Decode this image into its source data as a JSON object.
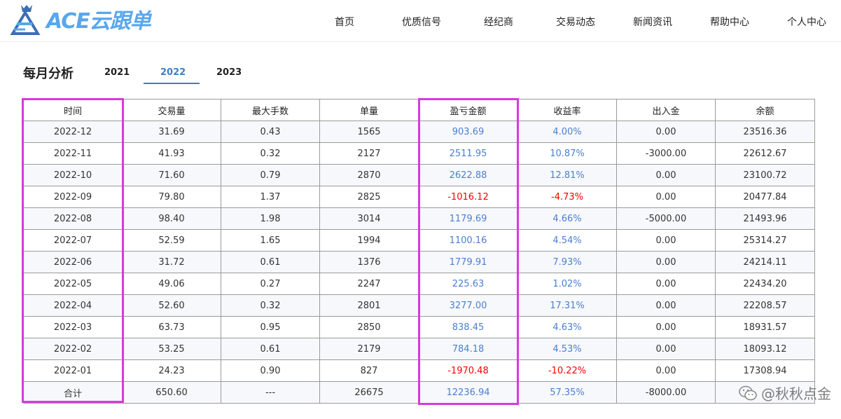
{
  "header": {
    "logo_text": "ACE云跟单",
    "nav": [
      "首页",
      "优质信号",
      "经纪商",
      "交易动态",
      "新闻资讯",
      "帮助中心",
      "个人中心"
    ]
  },
  "page": {
    "title": "每月分析",
    "years": [
      "2021",
      "2022",
      "2023"
    ],
    "active_year": "2022"
  },
  "table": {
    "headers": [
      "时间",
      "交易量",
      "最大手数",
      "单量",
      "盈亏金额",
      "收益率",
      "出入金",
      "余额"
    ],
    "rows": [
      {
        "time": "2022-12",
        "volume": "31.69",
        "max_lots": "0.43",
        "orders": "1565",
        "pnl": "903.69",
        "pnl_sign": "pos",
        "return": "4.00%",
        "deposit": "0.00",
        "balance": "23516.36"
      },
      {
        "time": "2022-11",
        "volume": "41.93",
        "max_lots": "0.32",
        "orders": "2127",
        "pnl": "2511.95",
        "pnl_sign": "pos",
        "return": "10.87%",
        "deposit": "-3000.00",
        "balance": "22612.67"
      },
      {
        "time": "2022-10",
        "volume": "71.60",
        "max_lots": "0.79",
        "orders": "2870",
        "pnl": "2622.88",
        "pnl_sign": "pos",
        "return": "12.81%",
        "deposit": "0.00",
        "balance": "23100.72"
      },
      {
        "time": "2022-09",
        "volume": "79.80",
        "max_lots": "1.37",
        "orders": "2825",
        "pnl": "-1016.12",
        "pnl_sign": "neg",
        "return": "-4.73%",
        "deposit": "0.00",
        "balance": "20477.84"
      },
      {
        "time": "2022-08",
        "volume": "98.40",
        "max_lots": "1.98",
        "orders": "3014",
        "pnl": "1179.69",
        "pnl_sign": "pos",
        "return": "4.66%",
        "deposit": "-5000.00",
        "balance": "21493.96"
      },
      {
        "time": "2022-07",
        "volume": "52.59",
        "max_lots": "1.65",
        "orders": "1994",
        "pnl": "1100.16",
        "pnl_sign": "pos",
        "return": "4.54%",
        "deposit": "0.00",
        "balance": "25314.27"
      },
      {
        "time": "2022-06",
        "volume": "31.72",
        "max_lots": "0.61",
        "orders": "1376",
        "pnl": "1779.91",
        "pnl_sign": "pos",
        "return": "7.93%",
        "deposit": "0.00",
        "balance": "24214.11"
      },
      {
        "time": "2022-05",
        "volume": "49.06",
        "max_lots": "0.27",
        "orders": "2247",
        "pnl": "225.63",
        "pnl_sign": "pos",
        "return": "1.02%",
        "deposit": "0.00",
        "balance": "22434.20"
      },
      {
        "time": "2022-04",
        "volume": "52.60",
        "max_lots": "0.32",
        "orders": "2801",
        "pnl": "3277.00",
        "pnl_sign": "pos",
        "return": "17.31%",
        "deposit": "0.00",
        "balance": "22208.57"
      },
      {
        "time": "2022-03",
        "volume": "63.73",
        "max_lots": "0.95",
        "orders": "2850",
        "pnl": "838.45",
        "pnl_sign": "pos",
        "return": "4.63%",
        "deposit": "0.00",
        "balance": "18931.57"
      },
      {
        "time": "2022-02",
        "volume": "53.25",
        "max_lots": "0.61",
        "orders": "2179",
        "pnl": "784.18",
        "pnl_sign": "pos",
        "return": "4.53%",
        "deposit": "0.00",
        "balance": "18093.12"
      },
      {
        "time": "2022-01",
        "volume": "24.23",
        "max_lots": "0.90",
        "orders": "827",
        "pnl": "-1970.48",
        "pnl_sign": "neg",
        "return": "-10.22%",
        "deposit": "0.00",
        "balance": "17308.94"
      }
    ],
    "total": {
      "time": "合计",
      "volume": "650.60",
      "max_lots": "---",
      "orders": "26675",
      "pnl": "12236.94",
      "pnl_sign": "pos",
      "return": "57.35%",
      "deposit": "-8000.00",
      "balance": ""
    }
  },
  "watermark": {
    "text": "@秋秋点金",
    "icon": "wechat-icon"
  },
  "colors": {
    "accent": "#3d7fc5",
    "positive": "#4a7fd1",
    "negative": "#ff0000",
    "highlight": "#d63bd9",
    "logo": "#58a7ec"
  }
}
